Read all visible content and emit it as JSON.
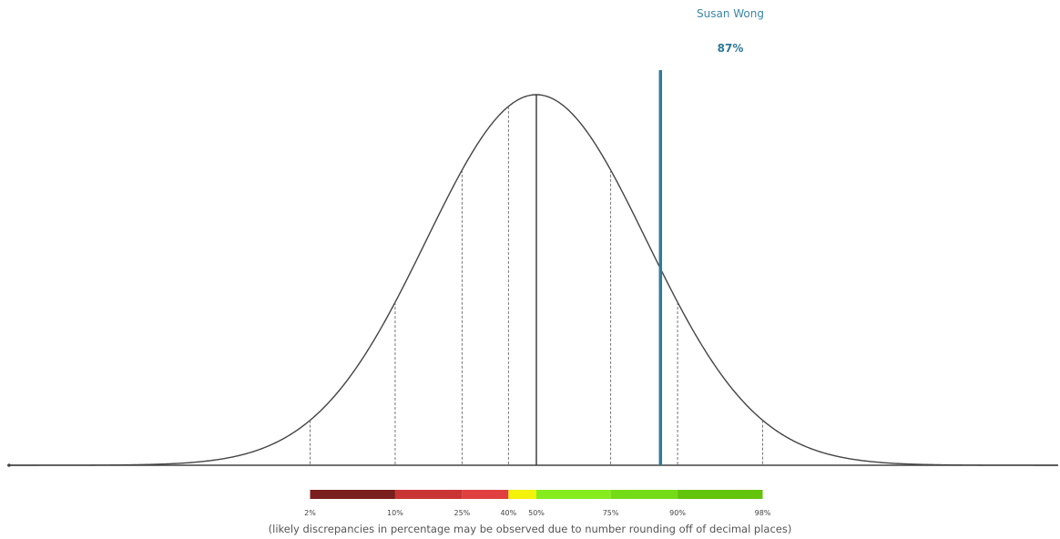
{
  "chart_data": {
    "type": "area",
    "distribution": "normal",
    "percentile_markers": [
      2,
      10,
      25,
      40,
      50,
      75,
      90,
      98
    ],
    "percentile_tick_labels": [
      "2%",
      "10%",
      "25%",
      "40%",
      "50%",
      "75%",
      "90%",
      "98%"
    ],
    "subject": {
      "name": "Susan Wong",
      "percentile": 87,
      "label": "87%",
      "color": "#2e7d9a"
    },
    "band_colors": [
      "#7a1e1e",
      "#c93434",
      "#e04040",
      "#f2f20a",
      "#86ec1e",
      "#74dc16",
      "#62c40c"
    ],
    "curve_color": "#444444",
    "axis_color": "#444444",
    "note": "(likely discrepancies in percentage may be observed due to number rounding off of decimal places)"
  }
}
